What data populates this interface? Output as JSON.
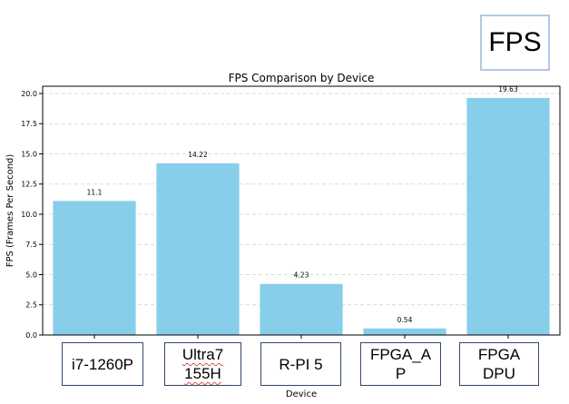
{
  "chart_data": {
    "type": "bar",
    "title": "FPS Comparison by Device",
    "xlabel": "Device",
    "ylabel": "FPS (Frames Per Second)",
    "categories": [
      "i7-1260P",
      "Ultra7\n155H",
      "R-PI 5",
      "FPGA_A\nP",
      "FPGA\nDPU"
    ],
    "values": [
      11.1,
      14.22,
      4.23,
      0.54,
      19.63
    ],
    "data_labels": [
      "11.1",
      "14.22",
      "4.23",
      "0.54",
      "19.63"
    ],
    "ylim": [
      0,
      20.6
    ],
    "yticks": [
      "0.0",
      "2.5",
      "5.0",
      "7.5",
      "10.0",
      "12.5",
      "15.0",
      "17.5",
      "20.0"
    ],
    "grid": "horizontal dashed",
    "bar_color": "#87ceeb"
  },
  "overlay": {
    "label": "FPS"
  }
}
